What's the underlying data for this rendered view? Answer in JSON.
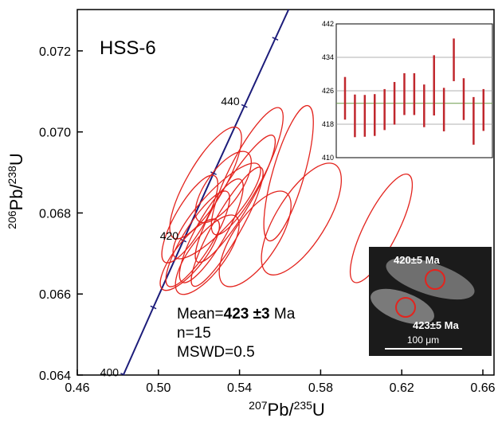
{
  "chart_data": [
    {
      "type": "concordia",
      "annotations": {
        "sample": "HSS-6",
        "mean_prefix": "Mean=",
        "mean_value": "423 ±3",
        "mean_unit": " Ma",
        "n": "n=15",
        "mswd": "MSWD=0.5"
      },
      "x_label": [
        {
          "text": "207",
          "sup": true
        },
        {
          "text": "Pb/"
        },
        {
          "text": "235",
          "sup": true
        },
        {
          "text": "U"
        }
      ],
      "y_label": [
        {
          "text": "206",
          "sup": true
        },
        {
          "text": "Pb/"
        },
        {
          "text": "238",
          "sup": true
        },
        {
          "text": "U"
        }
      ],
      "xlim": [
        0.46,
        0.6655
      ],
      "ylim": [
        0.064,
        0.07302
      ],
      "xticks": [
        0.46,
        {
          "value": 0.5,
          "label": "0.50"
        },
        0.54,
        0.58,
        0.62,
        0.66
      ],
      "yticks": [
        0.064,
        0.066,
        0.068,
        {
          "value": 0.07,
          "label": "0.070"
        },
        0.072
      ],
      "concordia": {
        "color": "#1c1c7a",
        "age": [
          400,
          410,
          420,
          430,
          440,
          450
        ],
        "x": [
          0.4828,
          0.4975,
          0.5123,
          0.5272,
          0.5424,
          0.5576
        ],
        "y": [
          0.06401,
          0.06567,
          0.06732,
          0.06898,
          0.07064,
          0.0723
        ],
        "labeled_ages": [
          400,
          420,
          440
        ]
      },
      "ellipse_color": "#e3241e",
      "x": [
        0.5642,
        0.6099,
        0.5705,
        0.5233,
        0.5438,
        0.5288,
        0.5194,
        0.5261,
        0.5477,
        0.5155,
        0.5379,
        0.5339,
        0.5155,
        0.532,
        0.5241
      ],
      "x_err": [
        0.0122,
        0.0153,
        0.0197,
        0.0177,
        0.0177,
        0.0216,
        0.0157,
        0.0157,
        0.0177,
        0.0146,
        0.0197,
        0.0177,
        0.0138,
        0.0138,
        0.0157
      ],
      "y": [
        0.06898,
        0.06762,
        0.06785,
        0.06874,
        0.06903,
        0.06805,
        0.06736,
        0.06756,
        0.06736,
        0.06697,
        0.06835,
        0.06766,
        0.06785,
        0.06864,
        0.06697
      ],
      "y_err": [
        0.00167,
        0.00134,
        0.00138,
        0.00138,
        0.00157,
        0.00118,
        0.00118,
        0.00128,
        0.00118,
        0.00088,
        0.00157,
        0.00147,
        0.00108,
        0.00088,
        0.00098
      ],
      "rho": [
        0.75,
        0.8,
        0.7,
        0.8,
        0.85,
        0.85,
        0.85,
        0.85,
        0.7,
        0.8,
        0.9,
        0.9,
        0.8,
        0.7,
        0.75
      ],
      "image_labels": {
        "spot1": "420±5 Ma",
        "spot2": "423±5 Ma",
        "scale": "100 μm"
      }
    },
    {
      "type": "errorbar",
      "color": "#c0272d",
      "ylim": [
        410,
        442
      ],
      "yticks": [
        410,
        418,
        426,
        434,
        442
      ],
      "mean": 423,
      "values": [
        424.2,
        420,
        420,
        420.2,
        421.5,
        423,
        425.2,
        425.2,
        422.4,
        427.3,
        421.5,
        433.4,
        424,
        418.8,
        421.4
      ],
      "errors": [
        5.1,
        5.1,
        5,
        5,
        4.9,
        5.1,
        5,
        5,
        5.1,
        7.2,
        5.2,
        5.1,
        5,
        5.7,
        5
      ]
    }
  ]
}
